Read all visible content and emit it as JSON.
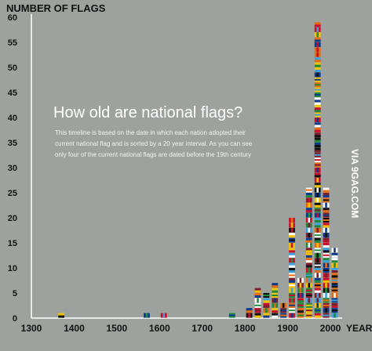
{
  "chart_data": {
    "type": "bar",
    "ylabel": "NUMBER OF FLAGS",
    "xlabel": "YEAR",
    "title": "How old are national flags?",
    "description": [
      "This timeline is based on the date in which each nation adopted their",
      "current national flag and is sorted by a 20 year interval. As you can see",
      "only four of the current national flags are dated before the 19th century"
    ],
    "xlim": [
      1300,
      2000
    ],
    "xticks": [
      1300,
      1400,
      1500,
      1600,
      1700,
      1800,
      1900,
      2000
    ],
    "ylim": [
      0,
      60
    ],
    "yticks": [
      0,
      5,
      10,
      15,
      20,
      25,
      30,
      35,
      40,
      45,
      50,
      55,
      60
    ],
    "bin_width_years": 20,
    "bins": [
      {
        "x": 1370,
        "value": 1
      },
      {
        "x": 1570,
        "value": 1
      },
      {
        "x": 1610,
        "value": 1
      },
      {
        "x": 1770,
        "value": 1
      },
      {
        "x": 1810,
        "value": 2
      },
      {
        "x": 1830,
        "value": 6
      },
      {
        "x": 1850,
        "value": 5
      },
      {
        "x": 1870,
        "value": 7
      },
      {
        "x": 1890,
        "value": 3
      },
      {
        "x": 1910,
        "value": 20
      },
      {
        "x": 1930,
        "value": 8
      },
      {
        "x": 1950,
        "value": 26
      },
      {
        "x": 1970,
        "value": 59
      },
      {
        "x": 1990,
        "value": 26
      },
      {
        "x": 2010,
        "value": 14
      }
    ],
    "grid": false,
    "colors": {
      "background": "#9ea29f",
      "axis": "#ffffff",
      "flag_palette": [
        "#c8102e",
        "#ffffff",
        "#0a3a8c",
        "#1f8a3b",
        "#f4c300",
        "#111111",
        "#e86a10",
        "#3fa0de",
        "#7a1f2b"
      ]
    }
  },
  "watermark": "VIA 9GAG.COM"
}
